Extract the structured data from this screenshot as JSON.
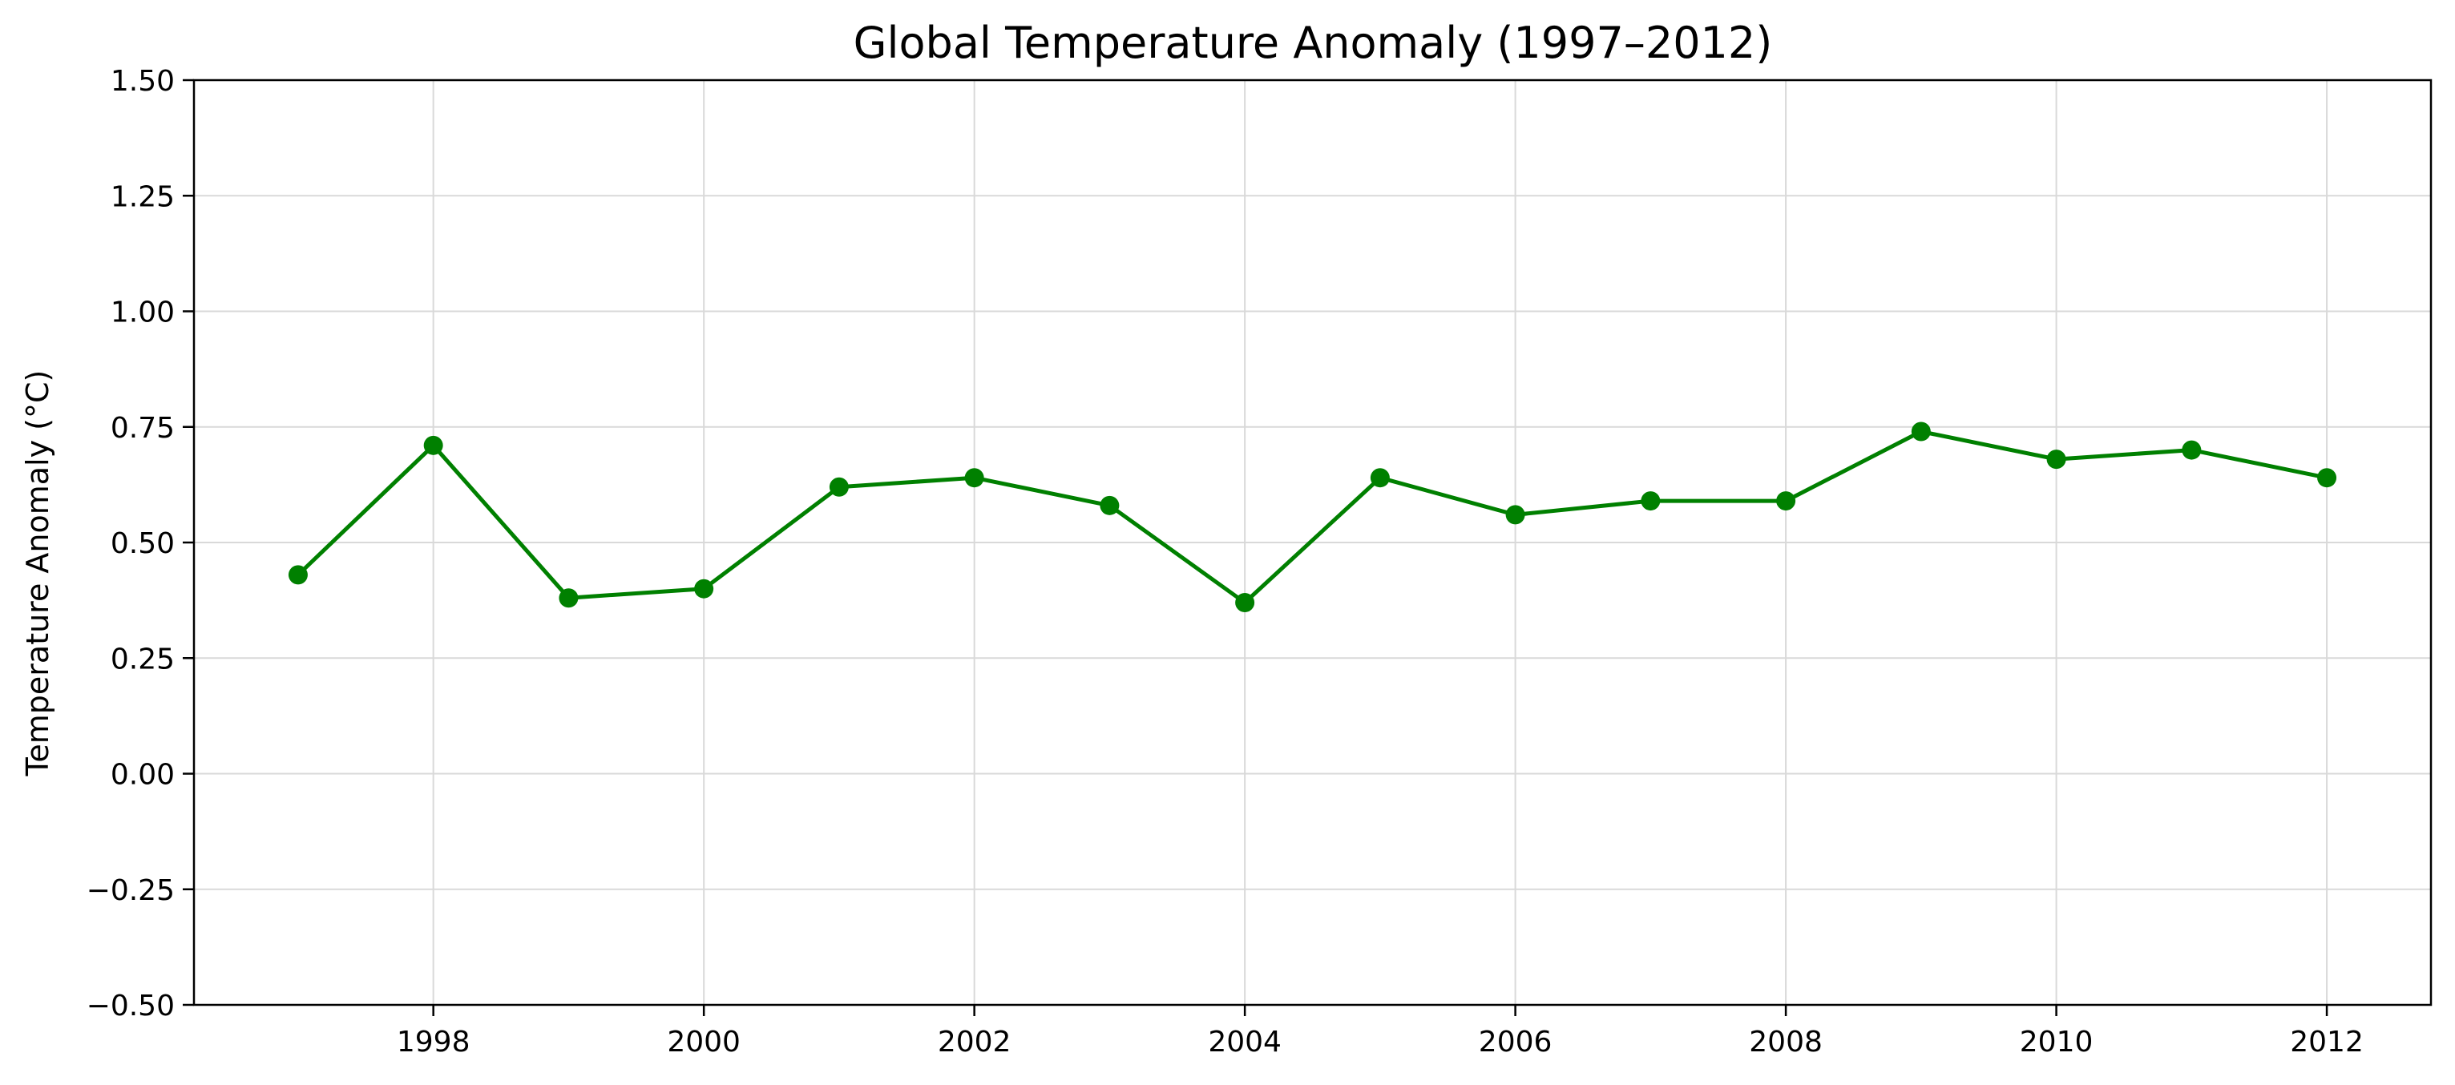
{
  "chart_data": {
    "type": "line",
    "title": "Global Temperature Anomaly (1997–2012)",
    "xlabel": "",
    "ylabel": "Temperature Anomaly (°C)",
    "x": [
      1997,
      1998,
      1999,
      2000,
      2001,
      2002,
      2003,
      2004,
      2005,
      2006,
      2007,
      2008,
      2009,
      2010,
      2011,
      2012
    ],
    "series": [
      {
        "values": [
          0.43,
          0.71,
          0.38,
          0.4,
          0.62,
          0.64,
          0.58,
          0.37,
          0.64,
          0.56,
          0.59,
          0.59,
          0.74,
          0.68,
          0.7,
          0.64
        ],
        "color": "#008000",
        "marker": "circle"
      }
    ],
    "xlim": [
      1996.23,
      2012.77
    ],
    "ylim": [
      -0.5,
      1.5
    ],
    "xticks": [
      1998,
      2000,
      2002,
      2004,
      2006,
      2008,
      2010,
      2012
    ],
    "xtick_labels": [
      "1998",
      "2000",
      "2002",
      "2004",
      "2006",
      "2008",
      "2010",
      "2012"
    ],
    "yticks": [
      -0.5,
      -0.25,
      0.0,
      0.25,
      0.5,
      0.75,
      1.0,
      1.25,
      1.5
    ],
    "ytick_labels": [
      "−0.50",
      "−0.25",
      "0.00",
      "0.25",
      "0.50",
      "0.75",
      "1.00",
      "1.25",
      "1.50"
    ],
    "grid": true
  }
}
